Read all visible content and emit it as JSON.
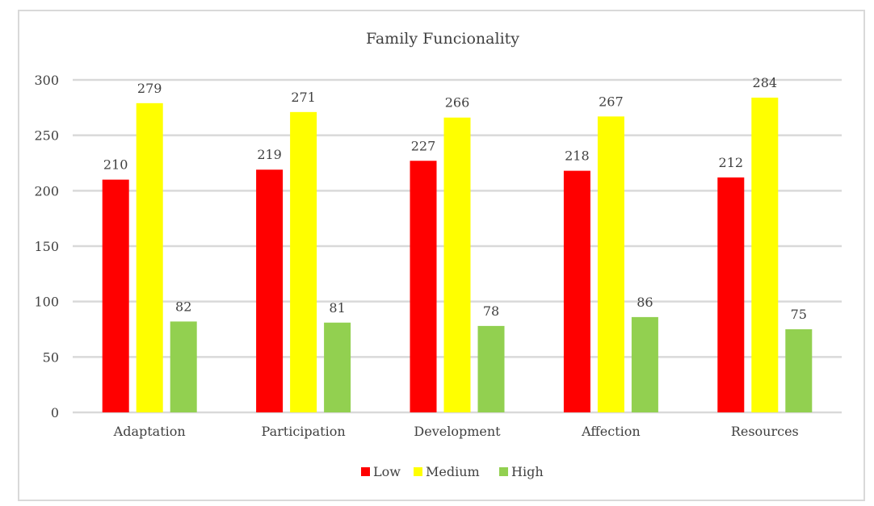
{
  "chart_data": {
    "type": "bar",
    "title": "Family Funcionality",
    "xlabel": "",
    "ylabel": "",
    "ylim": [
      0,
      300
    ],
    "yticks": [
      0,
      50,
      100,
      150,
      200,
      250,
      300
    ],
    "grid": true,
    "legend_position": "bottom",
    "categories": [
      "Adaptation",
      "Participation",
      "Development",
      "Affection",
      "Resources"
    ],
    "series": [
      {
        "name": "Low",
        "color": "#ff0000",
        "values": [
          210,
          219,
          227,
          218,
          212
        ]
      },
      {
        "name": "Medium",
        "color": "#ffff00",
        "values": [
          279,
          271,
          266,
          267,
          284
        ]
      },
      {
        "name": "High",
        "color": "#92d050",
        "values": [
          82,
          81,
          78,
          86,
          75
        ]
      }
    ]
  }
}
